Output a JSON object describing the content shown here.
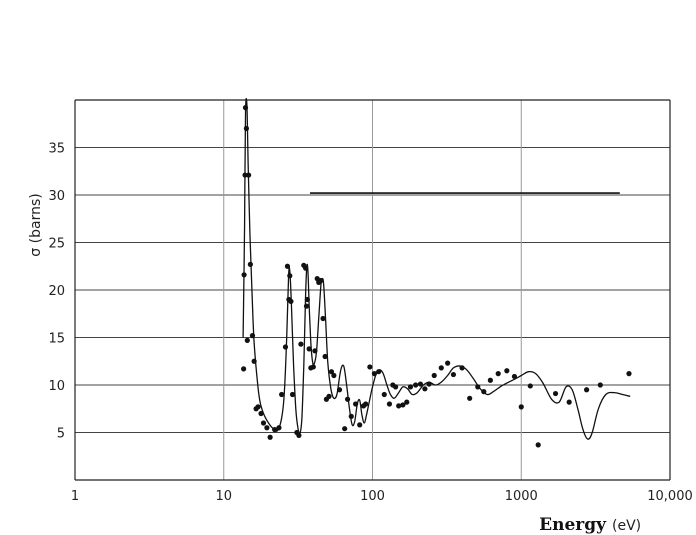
{
  "chart_data": {
    "type": "scatter",
    "title": "",
    "xlabel": "Energy",
    "xlabel_unit": "(eV)",
    "ylabel": "σ (barns)",
    "xscale": "log",
    "xlim": [
      1,
      10000
    ],
    "ylim": [
      0,
      40
    ],
    "x_ticks": [
      {
        "value": 1,
        "label": "1"
      },
      {
        "value": 10,
        "label": "10"
      },
      {
        "value": 100,
        "label": "100"
      },
      {
        "value": 1000,
        "label": "1000"
      },
      {
        "value": 10000,
        "label": "10,000"
      }
    ],
    "y_ticks": [
      {
        "value": 5,
        "label": "5"
      },
      {
        "value": 10,
        "label": "10"
      },
      {
        "value": 15,
        "label": "15"
      },
      {
        "value": 20,
        "label": "20"
      },
      {
        "value": 25,
        "label": "25"
      },
      {
        "value": 30,
        "label": "30"
      },
      {
        "value": 35,
        "label": "35"
      }
    ],
    "grid": true,
    "reference_line": {
      "x": [
        38,
        4600
      ],
      "y": 30.2
    },
    "series": [
      {
        "style": "points",
        "x": [
          13.6,
          13.7,
          13.9,
          14.0,
          14.2,
          14.4,
          14.7,
          15.1,
          15.6,
          16.0,
          16.5,
          17.0,
          17.8,
          18.5,
          19.5,
          20.5,
          22.0,
          23.5,
          24.5,
          26.0,
          26.8,
          27.4,
          27.8,
          28.3,
          29.0,
          31.0,
          32.0,
          33.0,
          34.5,
          35.5,
          36.0,
          36.5,
          37.5,
          38.5,
          40.0,
          41.0,
          42.5,
          43.5,
          45.0,
          46.5,
          48.0,
          49.0,
          51.0,
          53.0,
          55.0,
          60.0,
          65.0,
          68.0,
          72.0,
          77.0,
          82.0,
          87.0,
          90.0,
          96.0,
          103.0,
          110.0,
          120.0,
          130.0,
          137.0,
          143.0,
          150.0,
          160.0,
          170.0,
          180.0,
          195.0,
          210.0,
          225.0,
          240.0,
          260.0,
          290.0,
          320.0,
          350.0,
          400.0,
          450.0,
          510.0,
          560.0,
          620.0,
          700.0,
          800.0,
          900.0,
          1000.0,
          1150.0,
          1300.0,
          1700.0,
          2100.0,
          2750.0,
          3400.0,
          5300.0
        ],
        "y": [
          11.7,
          21.6,
          32.1,
          39.2,
          37.0,
          14.7,
          32.1,
          22.7,
          15.2,
          12.5,
          7.5,
          7.7,
          7.0,
          6.0,
          5.5,
          4.5,
          5.3,
          5.5,
          9.0,
          14.0,
          22.5,
          19.0,
          21.5,
          18.8,
          9.0,
          5.0,
          4.7,
          14.3,
          22.6,
          22.3,
          18.3,
          19.0,
          13.8,
          11.8,
          11.9,
          13.6,
          21.2,
          20.8,
          21.0,
          17.0,
          13.0,
          8.5,
          8.8,
          11.4,
          11.0,
          9.5,
          5.4,
          8.5,
          6.7,
          8.0,
          5.8,
          7.8,
          8.0,
          11.9,
          11.2,
          11.4,
          9.0,
          8.0,
          10.0,
          9.8,
          7.8,
          7.9,
          8.2,
          9.8,
          10.0,
          10.1,
          9.6,
          10.1,
          11.0,
          11.8,
          12.3,
          11.1,
          11.8,
          8.6,
          9.8,
          9.3,
          10.5,
          11.2,
          11.5,
          10.9,
          7.7,
          9.9,
          3.7,
          9.1,
          8.2,
          9.5,
          10.0,
          11.2
        ],
        "fit_x": [
          13.5,
          13.8,
          14.0,
          14.3,
          14.6,
          15.0,
          15.5,
          16.0,
          16.8,
          17.5,
          18.5,
          20.0,
          21.5,
          23.0,
          24.5,
          25.5,
          26.5,
          27.3,
          27.8,
          28.5,
          29.5,
          30.5,
          31.5,
          32.5,
          33.5,
          34.5,
          35.5,
          36.2,
          36.8,
          37.5,
          38.5,
          39.5,
          40.5,
          42.0,
          43.5,
          45.0,
          46.0,
          47.0,
          48.5,
          50.0,
          52.0,
          54.0,
          56.0,
          58.0,
          61.0,
          64.0,
          67.0,
          70.0,
          73.0,
          76.0,
          79.0,
          82.0,
          85.0,
          88.0,
          91.0,
          95.0,
          100.0,
          106.0,
          112.0,
          118.0,
          125.0,
          132.0,
          140.0,
          150.0,
          160.0,
          172.0,
          185.0,
          200.0,
          220.0,
          240.0,
          265.0,
          290.0,
          320.0,
          350.0,
          390.0,
          430.0,
          480.0,
          530.0,
          590.0,
          650.0,
          720.0,
          800.0,
          900.0,
          1000.0,
          1120.0,
          1250.0,
          1400.0,
          1600.0,
          1800.0,
          2000.0,
          2200.0,
          2400.0,
          2600.0,
          2800.0,
          3000.0,
          3300.0,
          3700.0,
          4200.0,
          4800.0,
          5400.0
        ],
        "fit_y": [
          15.0,
          27.0,
          38.5,
          39.5,
          33.0,
          26.0,
          19.5,
          14.5,
          10.5,
          8.3,
          7.0,
          6.0,
          5.4,
          5.2,
          6.5,
          9.0,
          15.0,
          21.5,
          22.0,
          18.5,
          12.0,
          7.5,
          5.5,
          4.9,
          6.5,
          12.0,
          19.5,
          22.5,
          22.0,
          18.5,
          14.5,
          12.5,
          12.2,
          13.5,
          17.0,
          20.5,
          21.2,
          20.5,
          16.5,
          12.5,
          10.0,
          8.8,
          8.6,
          9.2,
          11.5,
          12.0,
          10.0,
          7.5,
          5.8,
          6.2,
          8.0,
          8.4,
          6.8,
          6.0,
          6.8,
          8.2,
          9.8,
          11.2,
          11.6,
          11.2,
          10.0,
          9.0,
          8.6,
          9.2,
          9.8,
          9.6,
          9.0,
          9.2,
          10.0,
          10.3,
          10.0,
          10.3,
          11.0,
          11.8,
          12.0,
          11.6,
          10.6,
          9.6,
          9.0,
          9.3,
          9.8,
          10.2,
          10.6,
          11.0,
          11.4,
          11.2,
          10.2,
          8.5,
          8.2,
          9.8,
          9.5,
          7.5,
          5.3,
          4.3,
          5.0,
          7.5,
          9.0,
          9.2,
          9.0,
          8.8
        ]
      }
    ]
  }
}
